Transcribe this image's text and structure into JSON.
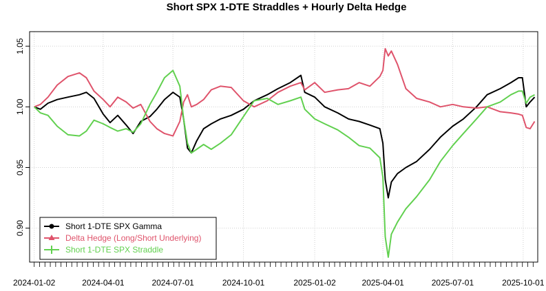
{
  "chart_data": {
    "type": "line",
    "title": "Short SPX 1-DTE Straddles + Hourly Delta Hedge",
    "xlabel": "",
    "ylabel": "",
    "x_tick_labels": [
      "2024-01-02",
      "2024-04-01",
      "2024-07-01",
      "2024-10-01",
      "2025-01-02",
      "2025-04-01",
      "2025-07-01",
      "2025-10-01"
    ],
    "y_ticks": [
      0.9,
      0.95,
      1.0,
      1.05
    ],
    "y_tick_labels": [
      "0.90",
      "0.95",
      "1.00",
      "1.05"
    ],
    "xlim": [
      "2023-12-27",
      "2025-10-20"
    ],
    "ylim": [
      0.872,
      1.062
    ],
    "grid": true,
    "legend_position": "bottom-left",
    "series": [
      {
        "name": "Short 1-DTE SPX Gamma",
        "color": "#000000",
        "points": [
          [
            "2024-01-02",
            1.0
          ],
          [
            "2024-01-10",
            0.998
          ],
          [
            "2024-01-20",
            1.003
          ],
          [
            "2024-02-01",
            1.006
          ],
          [
            "2024-02-15",
            1.008
          ],
          [
            "2024-03-01",
            1.01
          ],
          [
            "2024-03-10",
            1.012
          ],
          [
            "2024-03-20",
            1.007
          ],
          [
            "2024-04-01",
            0.994
          ],
          [
            "2024-04-10",
            0.987
          ],
          [
            "2024-04-20",
            0.993
          ],
          [
            "2024-05-01",
            0.985
          ],
          [
            "2024-05-10",
            0.978
          ],
          [
            "2024-05-20",
            0.988
          ],
          [
            "2024-06-01",
            0.992
          ],
          [
            "2024-06-10",
            0.998
          ],
          [
            "2024-06-20",
            1.006
          ],
          [
            "2024-07-01",
            1.012
          ],
          [
            "2024-07-10",
            1.008
          ],
          [
            "2024-07-15",
            0.99
          ],
          [
            "2024-07-20",
            0.966
          ],
          [
            "2024-07-25",
            0.962
          ],
          [
            "2024-08-01",
            0.972
          ],
          [
            "2024-08-10",
            0.982
          ],
          [
            "2024-08-20",
            0.986
          ],
          [
            "2024-09-01",
            0.99
          ],
          [
            "2024-09-15",
            0.993
          ],
          [
            "2024-10-01",
            0.998
          ],
          [
            "2024-10-15",
            1.005
          ],
          [
            "2024-11-01",
            1.01
          ],
          [
            "2024-11-15",
            1.015
          ],
          [
            "2024-12-01",
            1.02
          ],
          [
            "2024-12-15",
            1.026
          ],
          [
            "2024-12-20",
            1.012
          ],
          [
            "2025-01-02",
            1.008
          ],
          [
            "2025-01-15",
            1.0
          ],
          [
            "2025-02-01",
            0.995
          ],
          [
            "2025-02-15",
            0.99
          ],
          [
            "2025-03-01",
            0.988
          ],
          [
            "2025-03-15",
            0.985
          ],
          [
            "2025-03-28",
            0.982
          ],
          [
            "2025-04-01",
            0.97
          ],
          [
            "2025-04-04",
            0.94
          ],
          [
            "2025-04-08",
            0.925
          ],
          [
            "2025-04-12",
            0.938
          ],
          [
            "2025-04-20",
            0.945
          ],
          [
            "2025-05-01",
            0.95
          ],
          [
            "2025-05-15",
            0.955
          ],
          [
            "2025-06-01",
            0.965
          ],
          [
            "2025-06-15",
            0.975
          ],
          [
            "2025-07-01",
            0.984
          ],
          [
            "2025-07-15",
            0.99
          ],
          [
            "2025-08-01",
            1.0
          ],
          [
            "2025-08-15",
            1.01
          ],
          [
            "2025-09-01",
            1.015
          ],
          [
            "2025-09-15",
            1.02
          ],
          [
            "2025-09-25",
            1.024
          ],
          [
            "2025-09-30",
            1.024
          ],
          [
            "2025-10-05",
            1.0
          ],
          [
            "2025-10-10",
            1.004
          ],
          [
            "2025-10-16",
            1.008
          ]
        ]
      },
      {
        "name": "Delta Hedge (Long/Short Underlying)",
        "color": "#DF536B",
        "points": [
          [
            "2024-01-02",
            1.0
          ],
          [
            "2024-01-10",
            1.002
          ],
          [
            "2024-01-20",
            1.008
          ],
          [
            "2024-02-01",
            1.018
          ],
          [
            "2024-02-15",
            1.025
          ],
          [
            "2024-03-01",
            1.028
          ],
          [
            "2024-03-10",
            1.024
          ],
          [
            "2024-03-20",
            1.013
          ],
          [
            "2024-04-01",
            1.006
          ],
          [
            "2024-04-10",
            1.0
          ],
          [
            "2024-04-20",
            1.008
          ],
          [
            "2024-05-01",
            1.004
          ],
          [
            "2024-05-10",
            0.999
          ],
          [
            "2024-05-20",
            1.002
          ],
          [
            "2024-06-01",
            0.988
          ],
          [
            "2024-06-10",
            0.982
          ],
          [
            "2024-06-20",
            0.978
          ],
          [
            "2024-07-01",
            0.976
          ],
          [
            "2024-07-10",
            0.988
          ],
          [
            "2024-07-15",
            1.004
          ],
          [
            "2024-07-20",
            1.01
          ],
          [
            "2024-07-25",
            1.0
          ],
          [
            "2024-08-01",
            1.002
          ],
          [
            "2024-08-10",
            1.006
          ],
          [
            "2024-08-20",
            1.014
          ],
          [
            "2024-09-01",
            1.017
          ],
          [
            "2024-09-15",
            1.016
          ],
          [
            "2024-10-01",
            1.005
          ],
          [
            "2024-10-15",
            1.0
          ],
          [
            "2024-11-01",
            1.005
          ],
          [
            "2024-11-15",
            1.012
          ],
          [
            "2024-12-01",
            1.017
          ],
          [
            "2024-12-15",
            1.02
          ],
          [
            "2024-12-20",
            1.014
          ],
          [
            "2025-01-02",
            1.02
          ],
          [
            "2025-01-15",
            1.012
          ],
          [
            "2025-02-01",
            1.014
          ],
          [
            "2025-02-15",
            1.015
          ],
          [
            "2025-03-01",
            1.02
          ],
          [
            "2025-03-15",
            1.017
          ],
          [
            "2025-03-28",
            1.025
          ],
          [
            "2025-04-01",
            1.03
          ],
          [
            "2025-04-04",
            1.048
          ],
          [
            "2025-04-08",
            1.042
          ],
          [
            "2025-04-12",
            1.046
          ],
          [
            "2025-04-20",
            1.035
          ],
          [
            "2025-05-01",
            1.015
          ],
          [
            "2025-05-15",
            1.007
          ],
          [
            "2025-06-01",
            1.004
          ],
          [
            "2025-06-15",
            1.0
          ],
          [
            "2025-07-01",
            1.002
          ],
          [
            "2025-07-15",
            1.0
          ],
          [
            "2025-08-01",
            0.999
          ],
          [
            "2025-08-15",
            1.0
          ],
          [
            "2025-09-01",
            0.996
          ],
          [
            "2025-09-15",
            0.995
          ],
          [
            "2025-09-25",
            0.994
          ],
          [
            "2025-09-30",
            0.993
          ],
          [
            "2025-10-05",
            0.983
          ],
          [
            "2025-10-10",
            0.982
          ],
          [
            "2025-10-16",
            0.988
          ]
        ]
      },
      {
        "name": "Short 1-DTE SPX Straddle",
        "color": "#61D04F",
        "points": [
          [
            "2024-01-02",
            1.0
          ],
          [
            "2024-01-10",
            0.995
          ],
          [
            "2024-01-20",
            0.993
          ],
          [
            "2024-02-01",
            0.984
          ],
          [
            "2024-02-15",
            0.977
          ],
          [
            "2024-03-01",
            0.976
          ],
          [
            "2024-03-10",
            0.98
          ],
          [
            "2024-03-20",
            0.989
          ],
          [
            "2024-04-01",
            0.986
          ],
          [
            "2024-04-10",
            0.983
          ],
          [
            "2024-04-20",
            0.98
          ],
          [
            "2024-05-01",
            0.982
          ],
          [
            "2024-05-10",
            0.979
          ],
          [
            "2024-05-20",
            0.986
          ],
          [
            "2024-06-01",
            1.002
          ],
          [
            "2024-06-10",
            1.012
          ],
          [
            "2024-06-20",
            1.024
          ],
          [
            "2024-07-01",
            1.03
          ],
          [
            "2024-07-10",
            1.017
          ],
          [
            "2024-07-15",
            0.99
          ],
          [
            "2024-07-20",
            0.97
          ],
          [
            "2024-07-25",
            0.962
          ],
          [
            "2024-08-01",
            0.965
          ],
          [
            "2024-08-10",
            0.969
          ],
          [
            "2024-08-20",
            0.965
          ],
          [
            "2024-09-01",
            0.97
          ],
          [
            "2024-09-15",
            0.977
          ],
          [
            "2024-10-01",
            0.992
          ],
          [
            "2024-10-15",
            1.005
          ],
          [
            "2024-11-01",
            1.007
          ],
          [
            "2024-11-15",
            1.002
          ],
          [
            "2024-12-01",
            1.005
          ],
          [
            "2024-12-15",
            1.008
          ],
          [
            "2024-12-20",
            0.998
          ],
          [
            "2025-01-02",
            0.99
          ],
          [
            "2025-01-15",
            0.986
          ],
          [
            "2025-02-01",
            0.981
          ],
          [
            "2025-02-15",
            0.975
          ],
          [
            "2025-03-01",
            0.968
          ],
          [
            "2025-03-15",
            0.966
          ],
          [
            "2025-03-28",
            0.958
          ],
          [
            "2025-04-01",
            0.942
          ],
          [
            "2025-04-04",
            0.893
          ],
          [
            "2025-04-08",
            0.876
          ],
          [
            "2025-04-12",
            0.895
          ],
          [
            "2025-04-20",
            0.905
          ],
          [
            "2025-05-01",
            0.916
          ],
          [
            "2025-05-15",
            0.926
          ],
          [
            "2025-06-01",
            0.94
          ],
          [
            "2025-06-15",
            0.955
          ],
          [
            "2025-07-01",
            0.968
          ],
          [
            "2025-07-15",
            0.978
          ],
          [
            "2025-08-01",
            0.99
          ],
          [
            "2025-08-15",
            1.0
          ],
          [
            "2025-09-01",
            1.004
          ],
          [
            "2025-09-15",
            1.01
          ],
          [
            "2025-09-25",
            1.013
          ],
          [
            "2025-09-30",
            1.013
          ],
          [
            "2025-10-05",
            1.003
          ],
          [
            "2025-10-10",
            1.008
          ],
          [
            "2025-10-16",
            1.01
          ]
        ]
      }
    ]
  }
}
